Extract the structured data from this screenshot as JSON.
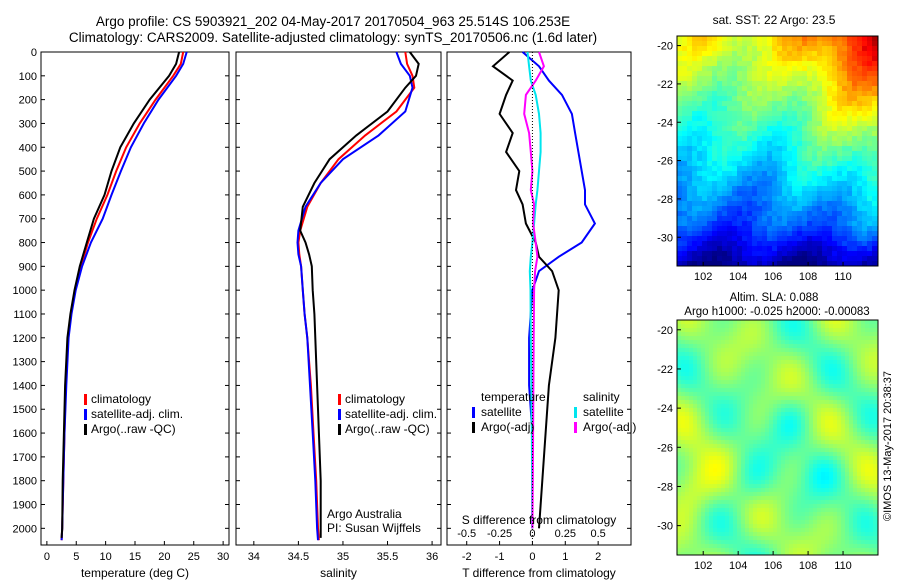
{
  "figure": {
    "title_line1": "Argo profile: CS 5903921_202 04-May-2017 20170504_963 25.514S 106.253E",
    "title_line2": "Climatology: CARS2009. Satellite-adjusted climatology: synTS_20170506.nc (1.6d later)",
    "colors": {
      "climatology": "#ff0000",
      "satellite": "#0000ff",
      "argo": "#000000",
      "satellite_s": "#00e5ee",
      "argo_s": "#ff00ff"
    }
  },
  "chart_data": [
    {
      "type": "line",
      "xlabel": "temperature (deg C)",
      "ylabel": "",
      "xlim": [
        -1,
        31
      ],
      "ylim": [
        2070,
        0
      ],
      "xticks": [
        0,
        5,
        10,
        15,
        20,
        25,
        30
      ],
      "yticks": [
        0,
        100,
        200,
        300,
        400,
        500,
        600,
        700,
        800,
        900,
        1000,
        1100,
        1200,
        1300,
        1400,
        1500,
        1600,
        1700,
        1800,
        1900,
        2000
      ],
      "legend": [
        "climatology",
        "satellite-adj. clim.",
        "Argo(..raw -QC)"
      ],
      "series": [
        {
          "name": "climatology",
          "color": "#ff0000",
          "x": [
            23.2,
            22.8,
            21.5,
            18.5,
            15.8,
            13.5,
            11.8,
            10.3,
            8.5,
            7.0,
            5.8,
            4.8,
            4.1,
            3.6,
            3.2,
            3.0,
            2.8,
            2.6,
            2.5
          ],
          "y": [
            0,
            50,
            100,
            200,
            300,
            400,
            500,
            600,
            700,
            800,
            900,
            1000,
            1100,
            1200,
            1400,
            1600,
            1800,
            2000,
            2050
          ]
        },
        {
          "name": "satellite-adj. clim.",
          "color": "#0000ff",
          "x": [
            23.8,
            23.2,
            22.0,
            19.0,
            16.5,
            14.3,
            12.6,
            11.0,
            9.5,
            7.5,
            6.0,
            4.9,
            4.2,
            3.7,
            3.3,
            3.0,
            2.8,
            2.6,
            2.5
          ],
          "y": [
            0,
            50,
            100,
            200,
            300,
            400,
            500,
            600,
            700,
            800,
            900,
            1000,
            1100,
            1200,
            1400,
            1600,
            1800,
            2000,
            2050
          ]
        },
        {
          "name": "Argo(..raw -QC)",
          "color": "#000000",
          "x": [
            22.5,
            22.0,
            20.8,
            17.5,
            14.8,
            12.5,
            11.0,
            9.8,
            8.0,
            6.8,
            5.6,
            4.7,
            4.0,
            3.5,
            3.1,
            2.9,
            2.7,
            2.6,
            2.5
          ],
          "y": [
            0,
            50,
            100,
            200,
            300,
            400,
            500,
            600,
            700,
            800,
            900,
            1000,
            1100,
            1200,
            1400,
            1600,
            1800,
            2000,
            2040
          ]
        }
      ]
    },
    {
      "type": "line",
      "xlabel": "salinity",
      "ylabel": "",
      "xlim": [
        33.8,
        36.1
      ],
      "ylim": [
        2070,
        0
      ],
      "xticks": [
        34,
        34.5,
        35,
        35.5,
        36
      ],
      "yticks": [
        0,
        100,
        200,
        300,
        400,
        500,
        600,
        700,
        800,
        900,
        1000,
        1100,
        1200,
        1300,
        1400,
        1500,
        1600,
        1700,
        1800,
        1900,
        2000
      ],
      "legend": [
        "climatology",
        "satellite-adj. clim.",
        "Argo(..raw -QC)"
      ],
      "annotation": [
        "Argo Australia",
        "PI: Susan Wijffels"
      ],
      "series": [
        {
          "name": "climatology",
          "color": "#ff0000",
          "x": [
            35.7,
            35.72,
            35.78,
            35.8,
            35.6,
            35.25,
            34.95,
            34.75,
            34.6,
            34.52,
            34.5,
            34.51,
            34.53,
            34.55,
            34.57,
            34.6,
            34.64,
            34.67,
            34.7,
            34.72,
            34.73
          ],
          "y": [
            0,
            50,
            100,
            150,
            250,
            350,
            450,
            550,
            650,
            750,
            800,
            850,
            900,
            1000,
            1100,
            1200,
            1400,
            1600,
            1800,
            2000,
            2050
          ]
        },
        {
          "name": "satellite-adj. clim.",
          "color": "#0000ff",
          "x": [
            35.6,
            35.65,
            35.75,
            35.78,
            35.7,
            35.4,
            35.0,
            34.75,
            34.58,
            34.5,
            34.49,
            34.5,
            34.53,
            34.55,
            34.57,
            34.6,
            34.63,
            34.66,
            34.69,
            34.71,
            34.72
          ],
          "y": [
            0,
            50,
            100,
            150,
            250,
            350,
            450,
            550,
            650,
            750,
            800,
            850,
            900,
            1000,
            1100,
            1200,
            1400,
            1600,
            1800,
            2000,
            2050
          ]
        },
        {
          "name": "Argo(..raw -QC)",
          "color": "#000000",
          "x": [
            35.75,
            35.85,
            35.82,
            35.7,
            35.5,
            35.15,
            34.85,
            34.68,
            34.55,
            34.52,
            34.58,
            34.62,
            34.65,
            34.66,
            34.68,
            34.69,
            34.71,
            34.73,
            34.75,
            34.75,
            34.75
          ],
          "y": [
            0,
            50,
            100,
            150,
            250,
            350,
            450,
            550,
            650,
            750,
            800,
            850,
            900,
            1000,
            1100,
            1200,
            1400,
            1600,
            1800,
            2000,
            2040
          ]
        }
      ]
    },
    {
      "type": "line",
      "xlabel": "T difference from climatology",
      "top_label": "S difference from climatology",
      "xlim": [
        -2.6,
        3.0
      ],
      "ylim": [
        2070,
        0
      ],
      "xticks": [
        -2,
        -1,
        0,
        1,
        2
      ],
      "top_ticks": [
        -0.5,
        -0.25,
        0,
        0.25,
        0.5
      ],
      "top_tick_labels": [
        "-0.5",
        "-0.25",
        "0",
        "0.25",
        "0.5"
      ],
      "yticks": [
        0,
        100,
        200,
        300,
        400,
        500,
        600,
        700,
        800,
        900,
        1000,
        1100,
        1200,
        1300,
        1400,
        1500,
        1600,
        1700,
        1800,
        1900,
        2000
      ],
      "legend_left_title": "temperature",
      "legend_right_title": "salinity",
      "legend_left": [
        "satellite",
        "Argo(-adj)"
      ],
      "legend_right": [
        "satellite",
        "Argo(-adj)"
      ],
      "series": [
        {
          "name": "satellite",
          "color": "#0000ff",
          "x": [
            -0.3,
            0.2,
            0.5,
            0.9,
            1.2,
            1.3,
            1.4,
            1.5,
            1.6,
            1.6,
            1.9,
            1.5,
            0.8,
            0.2,
            0.0,
            -0.1,
            -0.1,
            0.0,
            0.0,
            0.0
          ],
          "y": [
            0,
            60,
            120,
            180,
            260,
            340,
            420,
            500,
            580,
            640,
            720,
            800,
            860,
            920,
            1000,
            1200,
            1400,
            1600,
            1800,
            2000
          ]
        },
        {
          "name": "Argo(-adj)",
          "color": "#000000",
          "x": [
            -0.7,
            -1.2,
            -0.6,
            -0.8,
            -1.0,
            -0.6,
            -0.8,
            -0.4,
            -0.5,
            -0.3,
            -0.2,
            0.1,
            0.2,
            0.6,
            0.8,
            0.7,
            0.5,
            0.4,
            0.3,
            0.2
          ],
          "y": [
            0,
            60,
            120,
            180,
            260,
            340,
            420,
            500,
            580,
            640,
            720,
            800,
            860,
            920,
            1000,
            1200,
            1400,
            1600,
            1800,
            2000
          ]
        },
        {
          "name": "satellite",
          "color": "#00e5ee",
          "x": [
            -0.15,
            -0.1,
            -0.05,
            0.1,
            0.2,
            0.25,
            0.25,
            0.2,
            0.15,
            0.1,
            0.05,
            0.0,
            -0.05,
            -0.08,
            -0.06,
            -0.05,
            -0.03,
            -0.02,
            -0.01,
            -0.01
          ],
          "y": [
            0,
            60,
            120,
            180,
            260,
            340,
            420,
            500,
            580,
            640,
            720,
            800,
            860,
            920,
            1000,
            1200,
            1400,
            1600,
            1800,
            2000
          ]
        },
        {
          "name": "Argo(-adj)",
          "color": "#ff00ff",
          "x": [
            0.2,
            0.35,
            0.1,
            -0.2,
            -0.25,
            -0.1,
            -0.05,
            0.0,
            -0.05,
            0.05,
            0.02,
            0.1,
            0.15,
            0.08,
            0.05,
            0.04,
            0.03,
            0.02,
            0.01,
            0.0
          ],
          "y": [
            0,
            60,
            120,
            180,
            260,
            340,
            420,
            500,
            580,
            640,
            720,
            800,
            860,
            920,
            1000,
            1200,
            1400,
            1600,
            1800,
            2000
          ]
        }
      ]
    },
    {
      "type": "heatmap",
      "title": "sat. SST: 22  Argo: 23.5",
      "xlim": [
        100.5,
        112
      ],
      "ylim": [
        -31.5,
        -19.5
      ],
      "xticks": [
        102,
        104,
        106,
        108,
        110
      ],
      "yticks": [
        -20,
        -22,
        -24,
        -26,
        -28,
        -30
      ]
    },
    {
      "type": "heatmap",
      "title_line1": "Altim. SLA: 0.088",
      "title_line2": "Argo h1000: -0.025 h2000: -0.00083",
      "xlim": [
        100.5,
        112
      ],
      "ylim": [
        -31.5,
        -19.5
      ],
      "xticks": [
        102,
        104,
        106,
        108,
        110
      ],
      "yticks": [
        -20,
        -22,
        -24,
        -26,
        -28,
        -30
      ]
    }
  ],
  "watermark": "©IMOS 13-May-2017 20:38:37"
}
